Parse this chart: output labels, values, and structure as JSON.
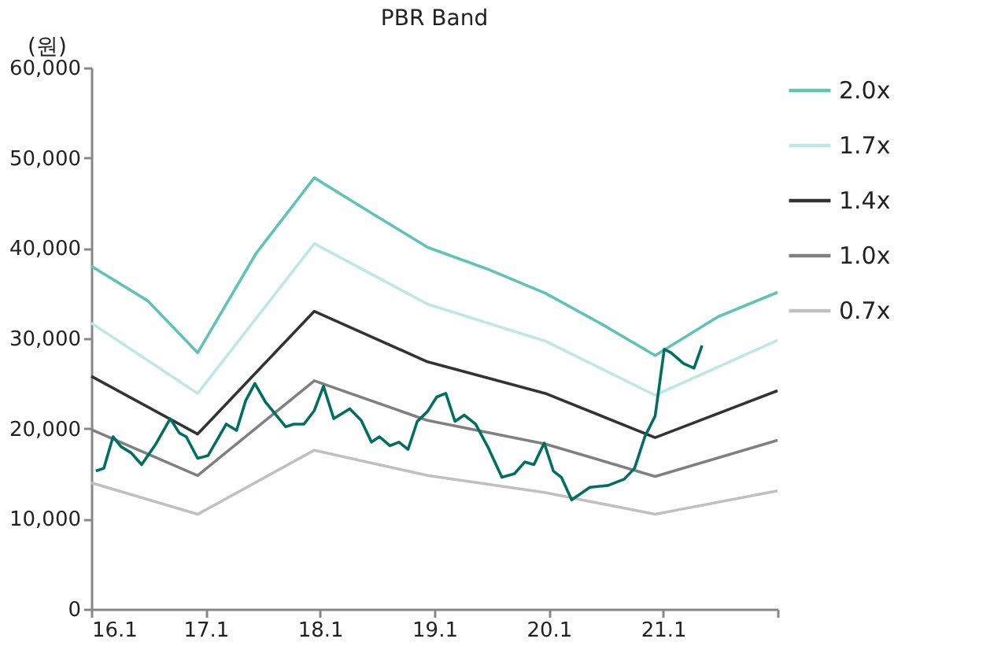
{
  "chart_data": {
    "type": "line",
    "title": "PBR Band",
    "ylabel": "(원)",
    "xlim": [
      16.1,
      22.1
    ],
    "xticks": [
      16.1,
      17.1,
      18.1,
      19.1,
      20.1,
      21.1,
      {
        "value": 22.1,
        "label": null
      }
    ],
    "ylim": [
      0,
      60000
    ],
    "yticks": [
      0,
      {
        "value": 10000,
        "label": "10,000"
      },
      {
        "value": 20000,
        "label": "20,000"
      },
      {
        "value": 30000,
        "label": "30,000"
      },
      {
        "value": 40000,
        "label": "40,000"
      },
      {
        "value": 50000,
        "label": "50,000"
      },
      {
        "value": 60000,
        "label": "60,000"
      }
    ],
    "grid": false,
    "legend": "right",
    "marker": "none",
    "line_style": "solid",
    "series": [
      {
        "name": "2.0x",
        "color": "#5fc4b4",
        "x": [
          16.1,
          16.59,
          17.03,
          17.54,
          18.05,
          18.56,
          19.04,
          19.56,
          20.07,
          20.56,
          21.03,
          21.58,
          22.1
        ],
        "values": [
          38000,
          34200,
          28400,
          39400,
          47800,
          43800,
          40100,
          37700,
          35000,
          31600,
          28100,
          32400,
          35100
        ]
      },
      {
        "name": "1.7x",
        "color": "#bfe8e0",
        "x": [
          16.1,
          17.03,
          18.05,
          19.04,
          20.07,
          21.03,
          22.1
        ],
        "values": [
          31700,
          23900,
          40500,
          33800,
          29700,
          23700,
          29800
        ]
      },
      {
        "name": "1.4x",
        "color": "#333333",
        "x": [
          16.1,
          17.03,
          18.05,
          19.04,
          20.07,
          21.03,
          22.1
        ],
        "values": [
          25800,
          19400,
          33000,
          27400,
          23900,
          19000,
          24200
        ]
      },
      {
        "name": "1.0x",
        "color": "#808080",
        "x": [
          16.1,
          17.03,
          18.05,
          19.04,
          20.07,
          21.03,
          22.1
        ],
        "values": [
          19900,
          14800,
          25300,
          20900,
          18300,
          14700,
          18700
        ]
      },
      {
        "name": "0.7x",
        "color": "#c0c0c0",
        "x": [
          16.1,
          17.03,
          18.05,
          19.04,
          20.07,
          21.03,
          22.1
        ],
        "values": [
          14000,
          10500,
          17600,
          14800,
          12900,
          10500,
          13100
        ]
      },
      {
        "color": "#006f5f",
        "x": [
          16.14,
          16.21,
          16.29,
          16.36,
          16.45,
          16.54,
          16.66,
          16.79,
          16.87,
          16.93,
          17.03,
          17.12,
          17.28,
          17.37,
          17.45,
          17.53,
          17.62,
          17.8,
          17.87,
          17.96,
          18.05,
          18.13,
          18.22,
          18.36,
          18.46,
          18.55,
          18.62,
          18.71,
          18.79,
          18.87,
          18.95,
          19.04,
          19.12,
          19.2,
          19.28,
          19.36,
          19.46,
          19.57,
          19.69,
          19.8,
          19.89,
          19.97,
          20.06,
          20.14,
          20.21,
          20.3,
          20.46,
          20.62,
          20.76,
          20.85,
          20.94,
          21.03,
          21.11,
          21.17,
          21.28,
          21.37,
          21.44
        ],
        "values": [
          15300,
          15600,
          19100,
          18000,
          17300,
          16000,
          18200,
          21100,
          19500,
          19100,
          16700,
          17000,
          20500,
          19800,
          23100,
          25000,
          23000,
          20200,
          20500,
          20500,
          22000,
          24700,
          21100,
          22200,
          20900,
          18500,
          19100,
          18100,
          18500,
          17700,
          20800,
          21900,
          23500,
          23900,
          20800,
          21500,
          20500,
          17900,
          14600,
          15000,
          16300,
          16000,
          18400,
          15300,
          14600,
          12100,
          13500,
          13700,
          14400,
          15600,
          19100,
          21400,
          28800,
          28400,
          27200,
          26700,
          29200
        ]
      }
    ]
  }
}
